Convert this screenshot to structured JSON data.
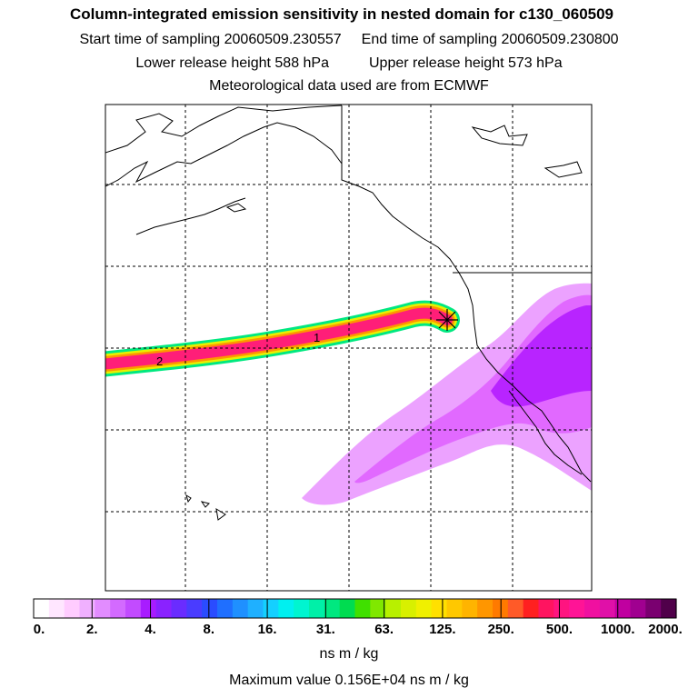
{
  "header": {
    "title": "Column-integrated emission sensitivity in nested domain for c130_060509",
    "start_label": "Start time of sampling 20060509.230557",
    "end_label": "End time of sampling 20060509.230800",
    "lower_label": "Lower release height  588 hPa",
    "upper_label": "Upper release height  573 hPa",
    "met_label": "Meteorological data used are from ECMWF"
  },
  "map": {
    "trajectory_labels": [
      "1",
      "2"
    ],
    "colors": {
      "plume": "#dd55ff",
      "plume_dark": "#a200ff",
      "trajectory_core": "#ff1e78",
      "coast": "#000000",
      "grid": "#000000"
    }
  },
  "colorbar": {
    "tick_labels": [
      "0.",
      "2.",
      "4.",
      "8.",
      "16.",
      "31.",
      "63.",
      "125.",
      "250.",
      "500.",
      "1000.",
      "2000."
    ],
    "colors": [
      "#ffffff",
      "#ffe6ff",
      "#ffccff",
      "#f0b0ff",
      "#e28cff",
      "#d36aff",
      "#c24bff",
      "#a81cff",
      "#8a22ff",
      "#6a2cff",
      "#4a3cff",
      "#2a4cff",
      "#1f6fff",
      "#1f90ff",
      "#1fb0ff",
      "#14d0ff",
      "#00f0f0",
      "#00f5d0",
      "#00f0a8",
      "#00e880",
      "#00dc50",
      "#40e000",
      "#80e800",
      "#b8f000",
      "#d8f000",
      "#f0f000",
      "#ffe000",
      "#ffc800",
      "#ffb400",
      "#ff9600",
      "#ff7a00",
      "#ff5a28",
      "#ff2020",
      "#ff1460",
      "#ff1480",
      "#ff1496",
      "#f010a0",
      "#e010a8",
      "#c000a0",
      "#a00090",
      "#7a0070",
      "#50004a"
    ]
  },
  "footer": {
    "units": "ns m / kg",
    "max_value": "Maximum value  0.156E+04 ns m / kg"
  }
}
